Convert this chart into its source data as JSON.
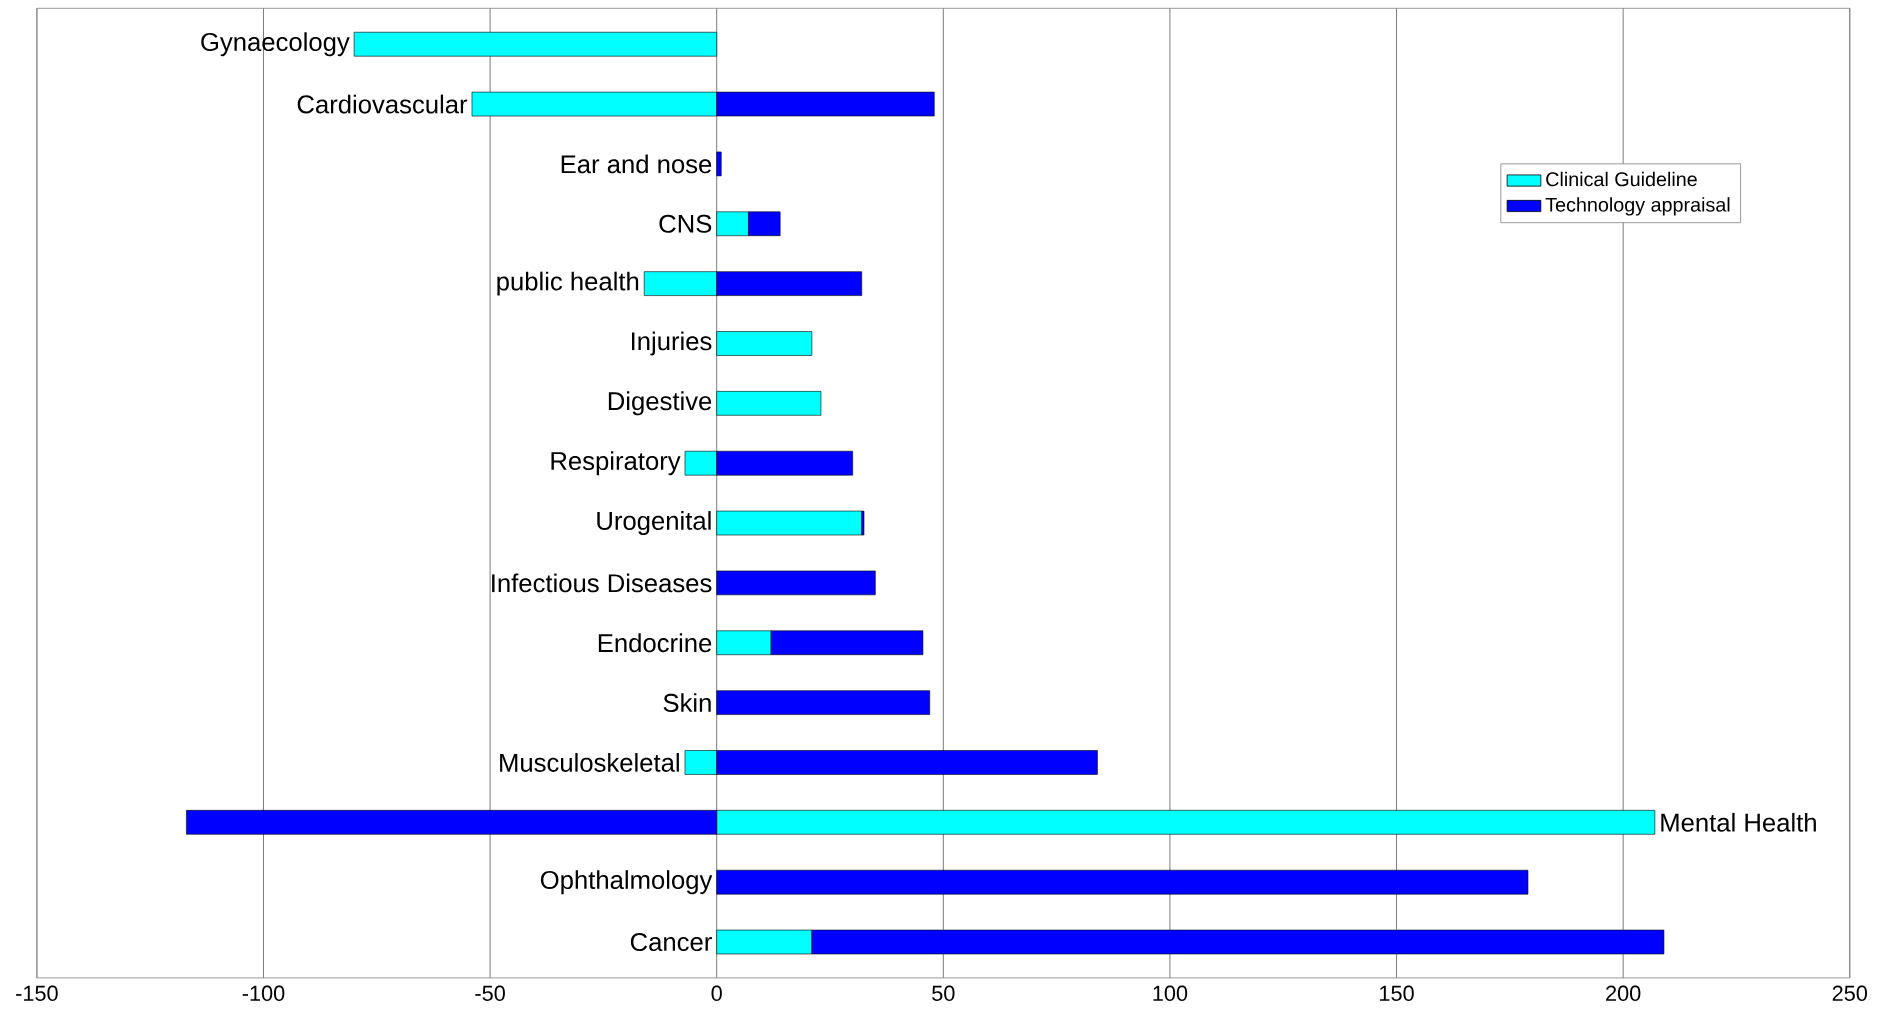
{
  "chart_data": {
    "type": "bar",
    "orientation": "horizontal",
    "stacked": true,
    "categories": [
      "Gynaecology",
      "Cardiovascular",
      "Ear and nose",
      "CNS",
      "public health",
      "Injuries",
      "Digestive",
      "Respiratory",
      "Urogenital",
      "Infectious Diseases",
      "Endocrine",
      "Skin",
      "Musculoskeletal",
      "Mental Health",
      "Ophthalmology",
      "Cancer"
    ],
    "series": [
      {
        "name": "Clinical Guideline",
        "color": "#00ffff",
        "values": [
          -80,
          -54,
          0,
          7,
          -16,
          21,
          23,
          -7,
          32,
          0,
          12,
          0,
          -7,
          207,
          0,
          21
        ]
      },
      {
        "name": "Technology appraisal",
        "color": "#0000ff",
        "values": [
          0,
          48,
          1,
          7,
          32,
          0,
          0,
          30,
          0.5,
          35,
          33.5,
          47,
          84,
          -117,
          179,
          188
        ]
      }
    ],
    "xlim": [
      -150,
      250
    ],
    "xticks": [
      -150,
      -100,
      -50,
      0,
      50,
      100,
      150,
      200,
      250
    ],
    "grid": "x",
    "legend": "top right"
  }
}
